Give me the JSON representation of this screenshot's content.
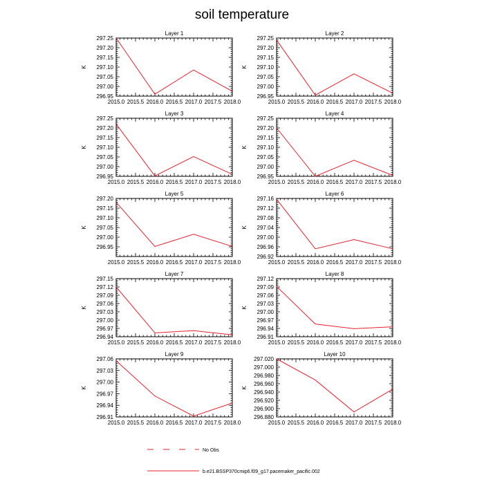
{
  "title": "soil temperature",
  "legend": {
    "no_obs_label": "No Obs",
    "model_label": "b.e21.BSSP370cmip6.f09_g17.pacemaker_pacific.002",
    "model_color": "#e8202a"
  },
  "x_tick_labels": [
    "2015.0",
    "2015.5",
    "2016.0",
    "2016.5",
    "2017.0",
    "2017.5",
    "2018.0"
  ],
  "chart_data": [
    {
      "type": "line",
      "title": "Layer 1",
      "ylabel": "K",
      "xlim": [
        2015,
        2018
      ],
      "ylim": [
        296.95,
        297.25
      ],
      "x": [
        2015,
        2016,
        2017,
        2018
      ],
      "values": [
        297.25,
        296.96,
        297.085,
        296.975
      ],
      "yticks": [
        296.95,
        297.0,
        297.05,
        297.1,
        297.15,
        297.2,
        297.25
      ],
      "ytick_labels": [
        "296.95",
        "297.00",
        "297.05",
        "297.10",
        "297.15",
        "297.20",
        "297.25"
      ]
    },
    {
      "type": "line",
      "title": "Layer 2",
      "ylabel": "K",
      "xlim": [
        2015,
        2018
      ],
      "ylim": [
        296.95,
        297.25
      ],
      "x": [
        2015,
        2016,
        2017,
        2018
      ],
      "values": [
        297.24,
        296.955,
        297.065,
        296.965
      ],
      "yticks": [
        296.95,
        297.0,
        297.05,
        297.1,
        297.15,
        297.2,
        297.25
      ],
      "ytick_labels": [
        "296.95",
        "297.00",
        "297.05",
        "297.10",
        "297.15",
        "297.20",
        "297.25"
      ]
    },
    {
      "type": "line",
      "title": "Layer 3",
      "ylabel": "K",
      "xlim": [
        2015,
        2018
      ],
      "ylim": [
        296.95,
        297.25
      ],
      "x": [
        2015,
        2016,
        2017,
        2018
      ],
      "values": [
        297.22,
        296.952,
        297.052,
        296.96
      ],
      "yticks": [
        296.95,
        297.0,
        297.05,
        297.1,
        297.15,
        297.2,
        297.25
      ],
      "ytick_labels": [
        "296.95",
        "297.00",
        "297.05",
        "297.10",
        "297.15",
        "297.20",
        "297.25"
      ]
    },
    {
      "type": "line",
      "title": "Layer 4",
      "ylabel": "K",
      "xlim": [
        2015,
        2018
      ],
      "ylim": [
        296.95,
        297.25
      ],
      "x": [
        2015,
        2016,
        2017,
        2018
      ],
      "values": [
        297.2,
        296.95,
        297.033,
        296.955
      ],
      "yticks": [
        296.95,
        297.0,
        297.05,
        297.1,
        297.15,
        297.2,
        297.25
      ],
      "ytick_labels": [
        "296.95",
        "297.00",
        "297.05",
        "297.10",
        "297.15",
        "297.20",
        "297.25"
      ]
    },
    {
      "type": "line",
      "title": "Layer 5",
      "ylabel": "K",
      "xlim": [
        2015,
        2018
      ],
      "ylim": [
        296.9,
        297.2
      ],
      "x": [
        2015,
        2016,
        2017,
        2018
      ],
      "values": [
        297.18,
        296.952,
        297.015,
        296.952
      ],
      "yticks": [
        296.95,
        297.0,
        297.05,
        297.1,
        297.15,
        297.2
      ],
      "ytick_labels": [
        "296.95",
        "297.00",
        "297.05",
        "297.10",
        "297.15",
        "297.20"
      ]
    },
    {
      "type": "line",
      "title": "Layer 6",
      "ylabel": "K",
      "xlim": [
        2015,
        2018
      ],
      "ylim": [
        296.92,
        297.16
      ],
      "x": [
        2015,
        2016,
        2017,
        2018
      ],
      "values": [
        297.157,
        296.952,
        296.99,
        296.952
      ],
      "yticks": [
        296.92,
        296.96,
        297.0,
        297.04,
        297.08,
        297.12,
        297.16
      ],
      "ytick_labels": [
        "296.92",
        "296.96",
        "297.00",
        "297.04",
        "297.08",
        "297.12",
        "297.16"
      ]
    },
    {
      "type": "line",
      "title": "Layer 7",
      "ylabel": "K",
      "xlim": [
        2015,
        2018
      ],
      "ylim": [
        296.94,
        297.15
      ],
      "x": [
        2015,
        2016,
        2017,
        2018
      ],
      "values": [
        297.12,
        296.954,
        296.962,
        296.947
      ],
      "yticks": [
        296.94,
        296.97,
        297.0,
        297.03,
        297.06,
        297.09,
        297.12,
        297.15
      ],
      "ytick_labels": [
        "296.94",
        "296.97",
        "297.00",
        "297.03",
        "297.06",
        "297.09",
        "297.12",
        "297.15"
      ]
    },
    {
      "type": "line",
      "title": "Layer 8",
      "ylabel": "K",
      "xlim": [
        2015,
        2018
      ],
      "ylim": [
        296.91,
        297.12
      ],
      "x": [
        2015,
        2016,
        2017,
        2018
      ],
      "values": [
        297.092,
        296.956,
        296.939,
        296.946
      ],
      "yticks": [
        296.91,
        296.94,
        296.97,
        297.0,
        297.03,
        297.06,
        297.09,
        297.12
      ],
      "ytick_labels": [
        "296.91",
        "296.94",
        "296.97",
        "297.00",
        "297.03",
        "297.06",
        "297.09",
        "297.12"
      ]
    },
    {
      "type": "line",
      "title": "Layer 9",
      "ylabel": "K",
      "xlim": [
        2015,
        2018
      ],
      "ylim": [
        296.91,
        297.06
      ],
      "x": [
        2015,
        2016,
        2017,
        2018
      ],
      "values": [
        297.055,
        296.964,
        296.912,
        296.946
      ],
      "yticks": [
        296.91,
        296.94,
        296.97,
        297.0,
        297.03,
        297.06
      ],
      "ytick_labels": [
        "296.91",
        "296.94",
        "296.97",
        "297.00",
        "297.03",
        "297.06"
      ]
    },
    {
      "type": "line",
      "title": "Layer 10",
      "ylabel": "K",
      "xlim": [
        2015,
        2018
      ],
      "ylim": [
        296.88,
        297.02
      ],
      "x": [
        2015,
        2016,
        2017,
        2018
      ],
      "values": [
        297.02,
        296.969,
        296.892,
        296.947
      ],
      "yticks": [
        296.88,
        296.9,
        296.92,
        296.94,
        296.96,
        296.98,
        297.0,
        297.02
      ],
      "ytick_labels": [
        "296.880",
        "296.900",
        "296.920",
        "296.940",
        "296.960",
        "296.980",
        "297.000",
        "297.020"
      ]
    }
  ]
}
